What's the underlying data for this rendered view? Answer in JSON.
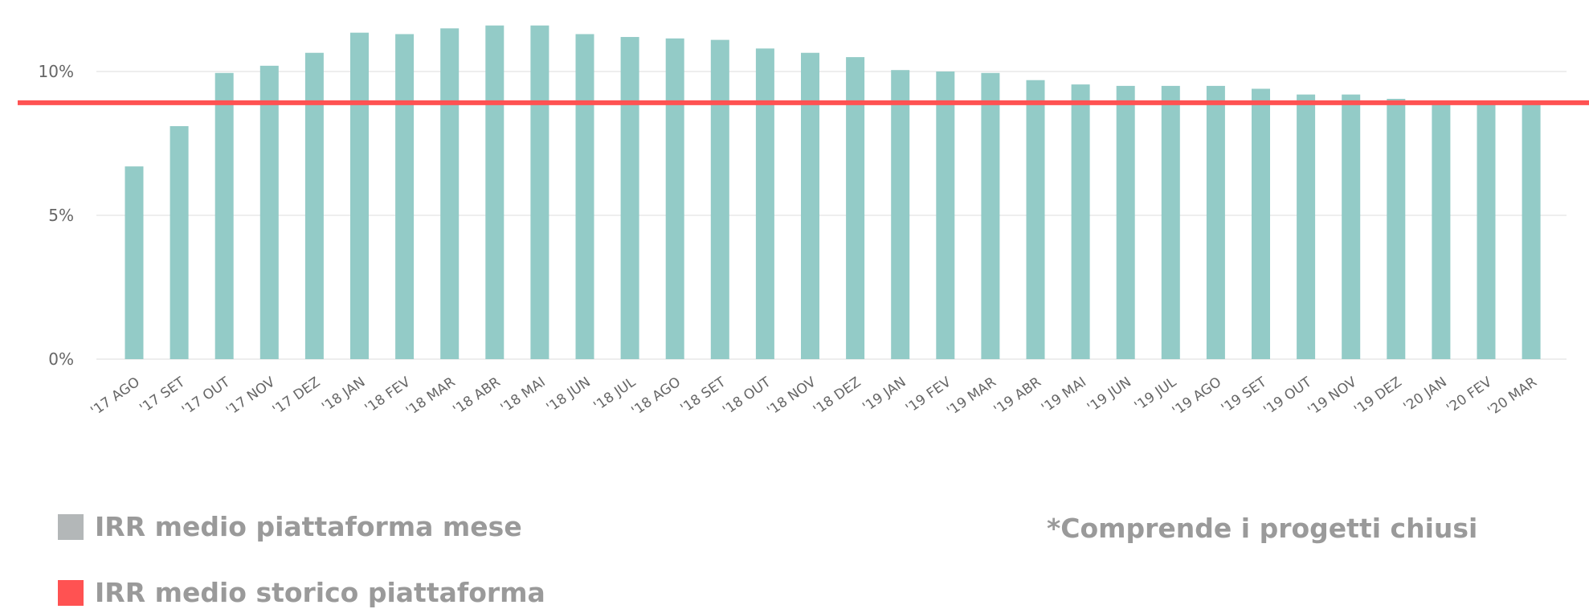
{
  "chart_data": {
    "type": "bar",
    "categories": [
      "'17 AGO",
      "'17 SET",
      "'17 OUT",
      "'17 NOV",
      "'17 DEZ",
      "'18 JAN",
      "'18 FEV",
      "'18 MAR",
      "'18 ABR",
      "'18 MAI",
      "'18 JUN",
      "'18 JUL",
      "'18 AGO",
      "'18 SET",
      "'18 OUT",
      "'18 NOV",
      "'18 DEZ",
      "'19 JAN",
      "'19 FEV",
      "'19 MAR",
      "'19 ABR",
      "'19 MAI",
      "'19 JUN",
      "'19 JUL",
      "'19 AGO",
      "'19 SET",
      "'19 OUT",
      "'19 NOV",
      "'19 DEZ",
      "'20 JAN",
      "'20 FEV",
      "'20 MAR"
    ],
    "series": [
      {
        "name": "IRR medio piattaforma mese",
        "values": [
          6.7,
          8.1,
          9.95,
          10.2,
          10.65,
          11.35,
          11.3,
          11.5,
          11.6,
          11.6,
          11.3,
          11.2,
          11.15,
          11.1,
          10.8,
          10.65,
          10.5,
          10.05,
          10.0,
          9.95,
          9.7,
          9.55,
          9.5,
          9.5,
          9.5,
          9.4,
          9.2,
          9.2,
          9.05,
          8.95,
          8.95,
          8.9
        ]
      }
    ],
    "reference_line": {
      "name": "IRR medio storico piattaforma",
      "value": 8.9
    },
    "yticks": [
      "0%",
      "5%",
      "10%"
    ],
    "ylim": [
      0,
      12.5
    ],
    "grid": true,
    "title": "",
    "xlabel": "",
    "ylabel": "",
    "colors": {
      "bar": "#93cbc7",
      "line": "#ff5252",
      "grid": "#e8e8e8"
    }
  },
  "legend": {
    "items": [
      {
        "label": "IRR medio piattaforma mese",
        "color": "#b3b7b8"
      },
      {
        "label": "IRR medio storico piattaforma",
        "color": "#ff5252"
      }
    ]
  },
  "note": "*Comprende i progetti chiusi"
}
